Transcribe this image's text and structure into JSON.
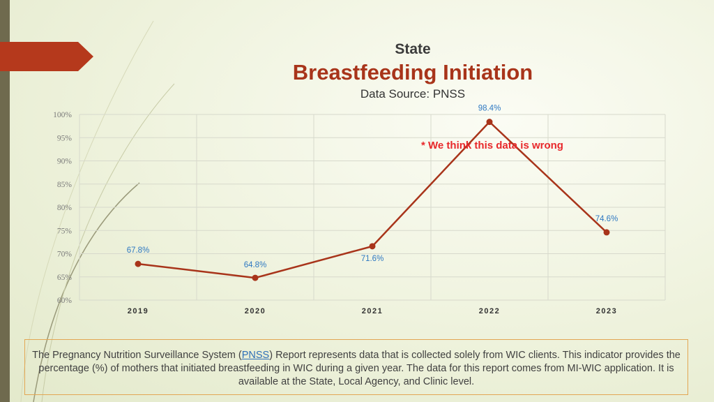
{
  "header": {
    "title": "State",
    "subtitle": "Breastfeeding Initiation",
    "source": "Data Source: PNSS"
  },
  "annotation": "* We think this data is wrong",
  "footer": {
    "text_before": "The Pregnancy Nutrition Surveillance System (",
    "link": "PNSS",
    "text_after": ") Report represents data that is collected solely from WIC clients. This indicator provides the percentage (%) of mothers that initiated breastfeeding in WIC during a given year. The data for this report comes from MI-WIC application. It is available at the State, Local Agency, and Clinic level."
  },
  "colors": {
    "line": "#a8341a",
    "data_label": "#2e78c2",
    "annotation": "#e8282b",
    "accent": "#b5391c"
  },
  "chart_data": {
    "type": "line",
    "categories": [
      "2019",
      "2020",
      "2021",
      "2022",
      "2023"
    ],
    "values": [
      67.8,
      64.8,
      71.6,
      98.4,
      74.6
    ],
    "data_labels": [
      "67.8%",
      "64.8%",
      "71.6%",
      "98.4%",
      "74.6%"
    ],
    "yticks": [
      "60%",
      "65%",
      "70%",
      "75%",
      "80%",
      "85%",
      "90%",
      "95%",
      "100%"
    ],
    "ylim": [
      60,
      100
    ],
    "grid": true,
    "legend": "none"
  }
}
